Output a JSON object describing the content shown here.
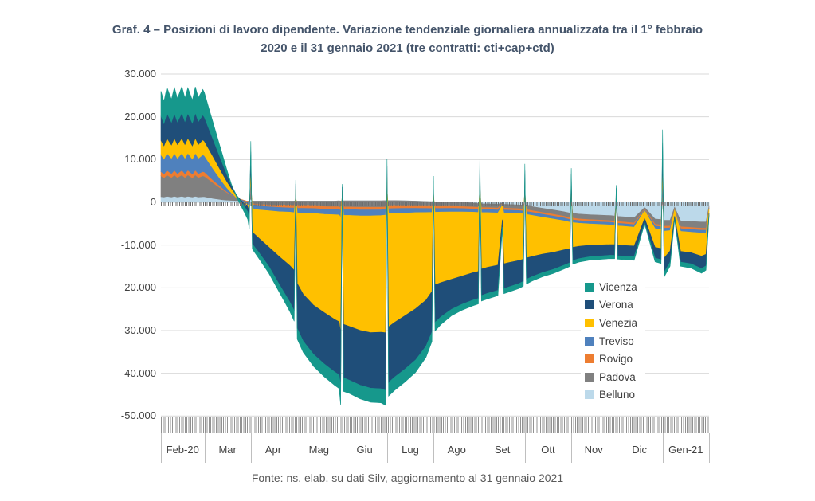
{
  "title": {
    "line1": "Graf. 4 – Posizioni di lavoro dipendente. Variazione tendenziale giornaliera annualizzata tra il 1° febbraio",
    "line2": "2020 e il 31 gennaio 2021 (tre contratti: cti+cap+ctd)"
  },
  "footer": "Fonte: ns. elab. su dati Silv, aggiornamento al 31 gennaio 2021",
  "colors": {
    "title_text": "#44546A",
    "axis_text": "#404040",
    "footer_text": "#595959",
    "gridline": "#D9D9D9"
  },
  "chart_data": {
    "type": "area",
    "stacked": true,
    "title": "Posizioni di lavoro dipendente - variazione tendenziale giornaliera annualizzata",
    "ylabel": "",
    "xlabel": "",
    "ylim": [
      -50000,
      30000
    ],
    "grid": true,
    "legend_position": "right-center",
    "values_unit": "thousands of positions",
    "x_unit": "days since 1 Feb 2020",
    "x_domain_days": 366,
    "y_tick_labels": [
      "30.000",
      "20.000",
      "10.000",
      "0",
      "-10.000",
      "-20.000",
      "-30.000",
      "-40.000",
      "-50.000"
    ],
    "y_tick_values_thousands": [
      30,
      20,
      10,
      0,
      -10,
      -20,
      -30,
      -40,
      -50
    ],
    "x_month_labels": [
      "Feb-20",
      "Mar",
      "Apr",
      "Mag",
      "Giu",
      "Lug",
      "Ago",
      "Set",
      "Ott",
      "Nov",
      "Dic",
      "Gen-21"
    ],
    "month_boundaries_days": [
      0,
      29,
      60,
      90,
      121,
      151,
      182,
      213,
      243,
      274,
      304,
      335,
      366
    ],
    "legend_order": [
      "Vicenza",
      "Verona",
      "Venezia",
      "Treviso",
      "Rovigo",
      "Padova",
      "Belluno"
    ],
    "x_days": [
      0,
      2,
      4,
      7,
      9,
      11,
      14,
      16,
      18,
      21,
      23,
      25,
      28,
      29,
      32,
      35,
      38,
      41,
      44,
      47,
      50,
      53,
      56,
      58,
      59,
      60,
      61,
      65,
      72,
      79,
      86,
      89,
      90,
      91,
      95,
      102,
      109,
      116,
      119,
      120,
      121,
      122,
      126,
      133,
      140,
      147,
      150,
      151,
      152,
      156,
      163,
      170,
      177,
      181,
      182,
      183,
      187,
      194,
      201,
      208,
      212,
      213,
      214,
      218,
      225,
      228,
      229,
      232,
      239,
      242,
      243,
      244,
      248,
      255,
      262,
      269,
      273,
      274,
      275,
      279,
      286,
      293,
      300,
      303,
      304,
      305,
      309,
      316,
      323,
      330,
      334,
      335,
      336,
      340,
      343,
      347,
      354,
      361,
      364,
      366
    ],
    "series": [
      {
        "name": "Belluno",
        "color": "#BCD9EA",
        "values": [
          1.3,
          1.2,
          1.4,
          1.2,
          1.4,
          1.2,
          1.4,
          1.2,
          1.4,
          1.2,
          1.4,
          1.2,
          1.3,
          1.3,
          1.1,
          0.9,
          0.75,
          0.6,
          0.5,
          0.45,
          0.4,
          0.35,
          0.3,
          0.3,
          0.3,
          0.8,
          0.3,
          0.3,
          0.3,
          0.3,
          0.3,
          0.3,
          0.4,
          0.3,
          0.3,
          0.3,
          0.3,
          0.3,
          0.35,
          0.3,
          0.4,
          0.35,
          0.35,
          0.35,
          0.35,
          0.35,
          0.4,
          0.5,
          0.4,
          0.4,
          0.35,
          0.3,
          0.2,
          0.15,
          0.3,
          0.1,
          0.1,
          0.05,
          0,
          -0.15,
          -0.3,
          0.35,
          -0.35,
          -0.35,
          -0.45,
          -0.1,
          -0.45,
          -0.5,
          -0.6,
          -0.7,
          0.25,
          -0.8,
          -1,
          -1.4,
          -1.8,
          -2.2,
          -2.5,
          0.25,
          -2.6,
          -2.75,
          -2.9,
          -3,
          -3.1,
          -3.2,
          0.15,
          -3.3,
          -3.4,
          -3.6,
          -1.2,
          -3.9,
          -4,
          0.4,
          -4.2,
          -4.2,
          -1.1,
          -4.35,
          -4.5,
          -4.6,
          -4.6,
          -0.9
        ]
      },
      {
        "name": "Padova",
        "color": "#808080",
        "values": [
          4.9,
          4.5,
          5,
          4.6,
          5,
          4.6,
          5,
          4.6,
          5,
          4.5,
          5,
          4.6,
          4.9,
          4.8,
          4.2,
          3.6,
          3,
          2.4,
          1.8,
          1.3,
          0.8,
          0.4,
          0.1,
          -0.1,
          -0.2,
          1.6,
          -0.6,
          -0.8,
          -0.9,
          -1,
          -1.1,
          -1.1,
          0.55,
          -1.15,
          -1.15,
          -1.2,
          -1.3,
          -1.35,
          -1.4,
          -1.6,
          0.45,
          -1.45,
          -1.45,
          -1.5,
          -1.5,
          -1.5,
          -1.5,
          1.1,
          -1.35,
          -1.3,
          -1.25,
          -1.2,
          -1.15,
          -1.1,
          0.65,
          -1.05,
          -1.05,
          -1,
          -1,
          -0.95,
          -0.9,
          1.3,
          -0.9,
          -0.9,
          -0.9,
          -0.25,
          -0.9,
          -0.9,
          -0.9,
          -0.9,
          1,
          -0.92,
          -0.95,
          -0.98,
          -1,
          -1.05,
          -1.1,
          0.9,
          -1.1,
          -1.12,
          -1.15,
          -1.16,
          -1.18,
          -1.2,
          0.45,
          -1.2,
          -1.2,
          -1.22,
          -0.4,
          -1.25,
          -1.3,
          1.9,
          -1.4,
          -1.35,
          -0.35,
          -1.38,
          -1.4,
          -1.45,
          -1.45,
          -0.3
        ]
      },
      {
        "name": "Rovigo",
        "color": "#ED7D31",
        "values": [
          1,
          0.9,
          1.1,
          0.9,
          1.1,
          0.9,
          1.1,
          0.9,
          1.1,
          0.9,
          1.1,
          0.9,
          1,
          1,
          0.8,
          0.65,
          0.5,
          0.35,
          0.2,
          0.1,
          0,
          -0.1,
          -0.15,
          -0.2,
          -0.3,
          0.4,
          -0.35,
          -0.4,
          -0.45,
          -0.5,
          -0.5,
          -0.55,
          0.15,
          -0.55,
          -0.55,
          -0.55,
          -0.6,
          -0.6,
          -0.6,
          -0.7,
          0.12,
          -0.6,
          -0.6,
          -0.62,
          -0.62,
          -0.6,
          -0.6,
          0.3,
          -0.55,
          -0.55,
          -0.52,
          -0.5,
          -0.48,
          -0.5,
          0.2,
          -0.48,
          -0.48,
          -0.46,
          -0.46,
          -0.45,
          -0.45,
          0.35,
          -0.44,
          -0.44,
          -0.44,
          -0.12,
          -0.43,
          -0.43,
          -0.43,
          -0.43,
          0.25,
          -0.43,
          -0.42,
          -0.42,
          -0.42,
          -0.41,
          -0.4,
          0.25,
          -0.4,
          -0.4,
          -0.4,
          -0.4,
          -0.4,
          -0.4,
          0.12,
          -0.4,
          -0.4,
          -0.4,
          -0.15,
          -0.4,
          -0.4,
          0.5,
          -0.45,
          -0.42,
          -0.12,
          -0.43,
          -0.44,
          -0.45,
          -0.45,
          -0.1
        ]
      },
      {
        "name": "Treviso",
        "color": "#4F81BD",
        "values": [
          3.9,
          3.5,
          4,
          3.6,
          4,
          3.6,
          4,
          3.6,
          4,
          3.5,
          4,
          3.6,
          3.9,
          3.8,
          3.2,
          2.6,
          2,
          1.4,
          0.9,
          0.4,
          0,
          -0.2,
          -0.4,
          -0.5,
          -0.6,
          2,
          -0.8,
          -0.85,
          -0.9,
          -1,
          -1,
          -1.05,
          0.7,
          -1.1,
          -1.1,
          -1.15,
          -1.2,
          -1.25,
          -1.3,
          -1.6,
          0.6,
          -1.35,
          -1.35,
          -1.4,
          -1.4,
          -1.35,
          -1.3,
          1.5,
          -1.15,
          -1.15,
          -1.1,
          -1,
          -0.95,
          -0.9,
          0.9,
          -0.88,
          -0.85,
          -0.82,
          -0.8,
          -0.75,
          -0.72,
          1.8,
          -0.72,
          -0.72,
          -0.7,
          -0.2,
          -0.7,
          -0.7,
          -0.68,
          -0.68,
          1.4,
          -0.68,
          -0.68,
          -0.7,
          -0.68,
          -0.66,
          -0.65,
          1.2,
          -0.64,
          -0.62,
          -0.6,
          -0.6,
          -0.6,
          -0.6,
          0.6,
          -0.6,
          -0.6,
          -0.6,
          -0.2,
          -0.6,
          -0.6,
          2.6,
          -0.7,
          -0.62,
          -0.18,
          -0.63,
          -0.65,
          -0.68,
          -0.68,
          -0.15
        ]
      },
      {
        "name": "Venezia",
        "color": "#FFC000",
        "values": [
          3.4,
          3.1,
          3.5,
          3.1,
          3.5,
          3.2,
          3.5,
          3.2,
          3.5,
          3.1,
          3.5,
          3.2,
          3.5,
          3.4,
          3.1,
          2.8,
          2.4,
          2,
          1.5,
          1,
          0.6,
          0.2,
          -0.2,
          -0.5,
          -1.5,
          3.5,
          -5.5,
          -6.5,
          -8.5,
          -10.5,
          -12.5,
          -13.5,
          1.3,
          -16.5,
          -19,
          -21.5,
          -23,
          -24.5,
          -25,
          -27,
          1,
          -25.5,
          -26,
          -26.8,
          -27.3,
          -27.3,
          -27.5,
          2.5,
          -26.5,
          -25.5,
          -24,
          -22.5,
          -20.5,
          -18.5,
          1.5,
          -17,
          -16.5,
          -15.8,
          -15,
          -14.2,
          -13.8,
          3,
          -13.2,
          -12.8,
          -12.2,
          -3.4,
          -11.9,
          -11.6,
          -11,
          -10.6,
          2.3,
          -10.2,
          -9.6,
          -8.6,
          -7.8,
          -6.8,
          -6.2,
          2,
          -5.8,
          -5.4,
          -5,
          -4.8,
          -4.6,
          -4.5,
          1,
          -4.5,
          -4.5,
          -4.4,
          -1.8,
          -4.4,
          -4.5,
          4.3,
          -6.3,
          -4.8,
          -1.5,
          -4.7,
          -4.8,
          -5.4,
          -5,
          -1
        ]
      },
      {
        "name": "Verona",
        "color": "#1F4E79",
        "values": [
          5.7,
          5.2,
          5.9,
          5.3,
          5.8,
          5.3,
          5.9,
          5.4,
          5.8,
          5.3,
          5.9,
          5.4,
          5.8,
          5.6,
          4.8,
          4,
          3.2,
          2.4,
          1.6,
          0.8,
          0.2,
          -0.3,
          -0.8,
          -1.2,
          -2,
          3.5,
          -2.8,
          -3.3,
          -4.5,
          -6.5,
          -8.5,
          -9.5,
          1.2,
          -10.5,
          -11,
          -11.5,
          -12,
          -12.3,
          -12.4,
          -12.3,
          1,
          -12.5,
          -12.6,
          -12.8,
          -13,
          -13.2,
          -13.5,
          2.5,
          -13,
          -12.8,
          -12.5,
          -12,
          -10.8,
          -9.5,
          1.5,
          -8.8,
          -8,
          -7,
          -6.6,
          -6.4,
          -6.3,
          3,
          -6.2,
          -6.1,
          -5.9,
          -1.7,
          -5.8,
          -5.7,
          -5.4,
          -5.2,
          2.2,
          -5,
          -4.7,
          -4.3,
          -4,
          -3.6,
          -3.3,
          2,
          -3.1,
          -2.9,
          -2.7,
          -2.6,
          -2.5,
          -2.5,
          1,
          -2.5,
          -2.5,
          -2.5,
          -1,
          -2.5,
          -2.6,
          4.3,
          -3.3,
          -2.6,
          -0.6,
          -2.5,
          -2.6,
          -2.9,
          -2.7,
          -0.5
        ]
      },
      {
        "name": "Vicenza",
        "color": "#16988C",
        "values": [
          5.8,
          5.2,
          6,
          5.4,
          6.1,
          5.5,
          6.2,
          5.5,
          6,
          5.4,
          6.1,
          5.6,
          6,
          5.8,
          4.8,
          3.9,
          3,
          2.1,
          1.2,
          0.3,
          -0.4,
          -0.9,
          -1.4,
          -1.8,
          -2,
          2.5,
          -1.2,
          -1.4,
          -1.6,
          -1.8,
          -2.2,
          -2.4,
          0.9,
          -2.5,
          -2.6,
          -2.8,
          -3,
          -3.1,
          -3.2,
          -4.6,
          0.7,
          -3.2,
          -3.1,
          -3.2,
          -3.3,
          -3.3,
          -3.5,
          1.8,
          -3.2,
          -3.1,
          -3,
          -2.9,
          -2.6,
          -2.2,
          1.1,
          -2,
          -1.8,
          -1.5,
          -1.4,
          -1.35,
          -1.3,
          2.2,
          -1.3,
          -1.3,
          -1.25,
          -0.35,
          -1.2,
          -1.2,
          -1.15,
          -1.1,
          1.6,
          -1.1,
          -1.05,
          -1,
          -0.95,
          -0.9,
          -0.85,
          1.4,
          -0.85,
          -0.8,
          -0.8,
          -0.8,
          -0.8,
          -0.8,
          0.7,
          -0.8,
          -0.8,
          -0.85,
          -0.3,
          -0.9,
          -0.9,
          3,
          -1.15,
          -0.95,
          -0.2,
          -0.95,
          -1,
          -1.1,
          -1,
          -0.25
        ]
      }
    ]
  }
}
